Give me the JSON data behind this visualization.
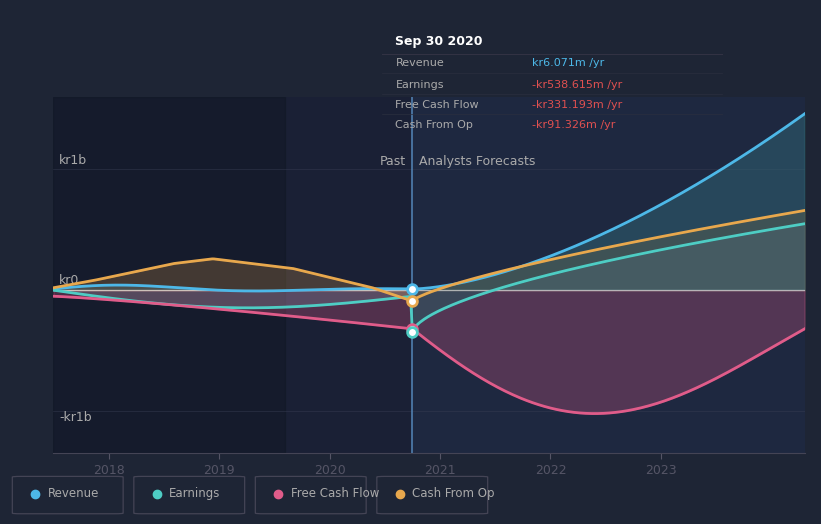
{
  "bg_color": "#1e2535",
  "plot_bg_color": "#252b3b",
  "tooltip": {
    "date": "Sep 30 2020",
    "rows": [
      {
        "label": "Revenue",
        "value": "kr6.071m /yr",
        "color": "#4db8e8"
      },
      {
        "label": "Earnings",
        "value": "-kr538.615m /yr",
        "color": "#e05050"
      },
      {
        "label": "Free Cash Flow",
        "value": "-kr331.193m /yr",
        "color": "#e05050"
      },
      {
        "label": "Cash From Op",
        "value": "-kr91.326m /yr",
        "color": "#e05050"
      }
    ]
  },
  "past_label": "Past",
  "forecast_label": "Analysts Forecasts",
  "ylabel_top": "kr1b",
  "ylabel_mid": "kr0",
  "ylabel_bot": "-kr1b",
  "legend": [
    {
      "label": "Revenue",
      "color": "#4db8e8"
    },
    {
      "label": "Earnings",
      "color": "#4ecdc4"
    },
    {
      "label": "Free Cash Flow",
      "color": "#e05c8a"
    },
    {
      "label": "Cash From Op",
      "color": "#e8a84d"
    }
  ],
  "colors": {
    "revenue": "#4db8e8",
    "earnings": "#4ecdc4",
    "fcf": "#e05c8a",
    "cfo": "#e8a84d"
  },
  "split_x": 2020.75,
  "xmin": 2017.5,
  "xmax": 2024.3,
  "ymin": -1.35,
  "ymax": 1.6
}
